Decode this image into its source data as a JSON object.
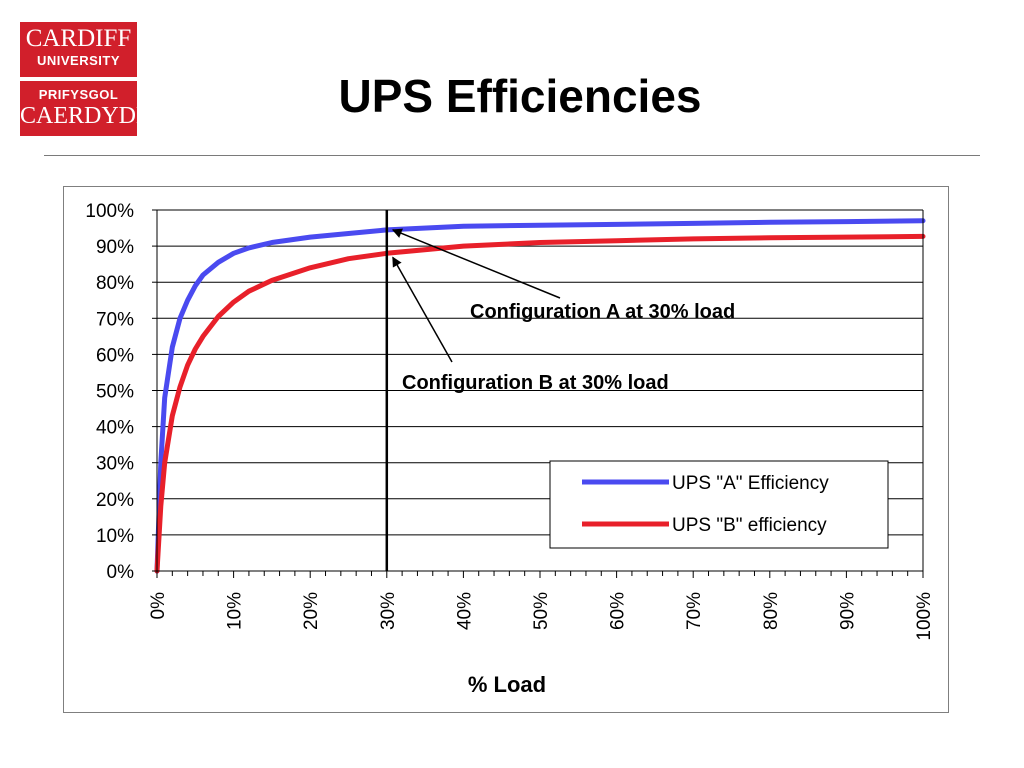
{
  "slide": {
    "title": "UPS Efficiencies"
  },
  "logo": {
    "line1": "CARDIFF",
    "line2": "UNIVERSITY",
    "line3": "PRIFYSGOL",
    "line4": "CAERDYDD",
    "color": "#d11f2b"
  },
  "chart_data": {
    "type": "line",
    "title": "",
    "xlabel": "% Load",
    "ylabel": "",
    "xlim": [
      0,
      100
    ],
    "ylim": [
      0,
      100
    ],
    "x_unit": "%",
    "y_unit": "%",
    "x_ticks": [
      "0%",
      "10%",
      "20%",
      "30%",
      "40%",
      "50%",
      "60%",
      "70%",
      "80%",
      "90%",
      "100%"
    ],
    "y_ticks": [
      "0%",
      "10%",
      "20%",
      "30%",
      "40%",
      "50%",
      "60%",
      "70%",
      "80%",
      "90%",
      "100%"
    ],
    "grid": "horizontal",
    "legend_position": "bottom-right",
    "series": [
      {
        "name": "UPS \"A\" Efficiency",
        "color": "#4a4af0",
        "x": [
          0,
          0.5,
          1,
          2,
          3,
          4,
          5,
          6,
          8,
          10,
          12,
          15,
          20,
          25,
          30,
          40,
          50,
          60,
          70,
          80,
          90,
          100
        ],
        "y": [
          0,
          30,
          48,
          62,
          70,
          75,
          79,
          82,
          85.5,
          88,
          89.5,
          91,
          92.5,
          93.5,
          94.5,
          95.5,
          95.8,
          96,
          96.3,
          96.6,
          96.8,
          97
        ]
      },
      {
        "name": "UPS \"B\" efficiency",
        "color": "#e8202a",
        "x": [
          0,
          0.5,
          1,
          2,
          3,
          4,
          5,
          6,
          8,
          10,
          12,
          15,
          20,
          25,
          30,
          40,
          50,
          60,
          70,
          80,
          90,
          100
        ],
        "y": [
          0,
          18,
          30,
          43,
          51,
          57,
          61.5,
          65,
          70.5,
          74.5,
          77.5,
          80.5,
          84,
          86.5,
          88,
          90,
          91,
          91.5,
          92,
          92.3,
          92.5,
          92.7
        ]
      }
    ],
    "reference_line": {
      "x": 30,
      "color": "#000000"
    },
    "annotations": [
      {
        "text": "Configuration A at 30% load",
        "x": 30,
        "y": 94.5
      },
      {
        "text": "Configuration B at 30% load",
        "x": 30,
        "y": 88
      }
    ]
  }
}
